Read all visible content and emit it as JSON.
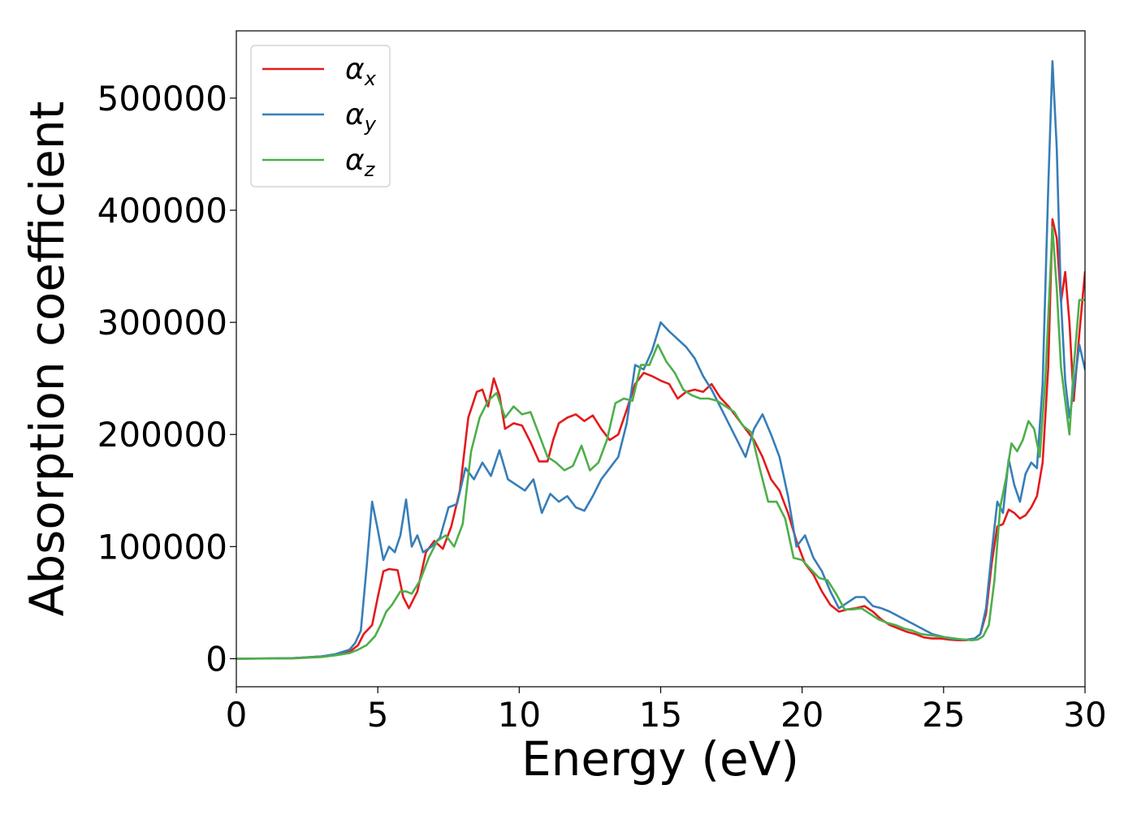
{
  "chart_data": {
    "type": "line",
    "title": "",
    "xlabel": "Energy (eV)",
    "ylabel": "Absorption coefficient",
    "xlim": [
      0,
      30
    ],
    "ylim": [
      -25000,
      560000
    ],
    "xticks": [
      0,
      5,
      10,
      15,
      20,
      25,
      30
    ],
    "yticks": [
      0,
      100000,
      200000,
      300000,
      400000,
      500000
    ],
    "grid": false,
    "legend_position": "top-left",
    "series": [
      {
        "name": "αx",
        "symbol": "α",
        "subscript": "x",
        "color": "#e41a1c",
        "x": [
          0,
          2,
          3,
          3.5,
          4,
          4.3,
          4.5,
          4.8,
          5,
          5.2,
          5.4,
          5.7,
          5.9,
          6.1,
          6.4,
          6.7,
          7.0,
          7.3,
          7.6,
          7.9,
          8.2,
          8.5,
          8.7,
          8.9,
          9.1,
          9.3,
          9.5,
          9.8,
          10.1,
          10.4,
          10.7,
          11.0,
          11.2,
          11.4,
          11.7,
          12.0,
          12.3,
          12.6,
          12.9,
          13.2,
          13.5,
          13.8,
          14.1,
          14.4,
          14.7,
          15.0,
          15.3,
          15.6,
          15.9,
          16.2,
          16.5,
          16.8,
          17.1,
          17.4,
          17.7,
          18.0,
          18.3,
          18.6,
          18.9,
          19.2,
          19.5,
          19.8,
          20.1,
          20.4,
          20.7,
          21.0,
          21.3,
          21.6,
          21.9,
          22.2,
          22.5,
          22.8,
          23.1,
          23.4,
          23.7,
          24.0,
          24.3,
          24.6,
          24.9,
          25.2,
          25.5,
          25.8,
          26.1,
          26.3,
          26.5,
          26.7,
          26.9,
          27.1,
          27.3,
          27.5,
          27.7,
          27.9,
          28.1,
          28.3,
          28.5,
          28.7,
          28.85,
          29.0,
          29.15,
          29.3,
          29.45,
          29.6,
          29.8,
          30.0
        ],
        "values": [
          0,
          500,
          2000,
          3500,
          6000,
          12000,
          22000,
          30000,
          55000,
          78000,
          80000,
          79000,
          55000,
          45000,
          60000,
          95000,
          105000,
          98000,
          118000,
          150000,
          215000,
          238000,
          240000,
          225000,
          250000,
          235000,
          205000,
          210000,
          208000,
          193000,
          176000,
          176000,
          195000,
          210000,
          215000,
          218000,
          212000,
          217000,
          205000,
          195000,
          200000,
          222000,
          245000,
          255000,
          252000,
          248000,
          245000,
          232000,
          238000,
          240000,
          238000,
          245000,
          233000,
          225000,
          215000,
          205000,
          195000,
          180000,
          160000,
          150000,
          130000,
          105000,
          85000,
          75000,
          60000,
          48000,
          42000,
          44000,
          45000,
          47000,
          42000,
          35000,
          30000,
          27000,
          24000,
          22000,
          19000,
          18000,
          18000,
          17000,
          16500,
          16500,
          18000,
          22000,
          40000,
          85000,
          118000,
          120000,
          133000,
          130000,
          125000,
          128000,
          135000,
          145000,
          175000,
          260000,
          392000,
          375000,
          318000,
          345000,
          300000,
          230000,
          290000,
          345000
        ]
      },
      {
        "name": "αy",
        "symbol": "α",
        "subscript": "y",
        "color": "#377eb8",
        "x": [
          0,
          2,
          3,
          3.5,
          4,
          4.2,
          4.4,
          4.6,
          4.8,
          5.0,
          5.2,
          5.4,
          5.6,
          5.8,
          6.0,
          6.2,
          6.4,
          6.6,
          6.9,
          7.2,
          7.5,
          7.8,
          8.1,
          8.4,
          8.7,
          9.0,
          9.3,
          9.6,
          9.9,
          10.2,
          10.5,
          10.8,
          11.1,
          11.4,
          11.7,
          12.0,
          12.3,
          12.6,
          12.9,
          13.2,
          13.5,
          13.8,
          14.1,
          14.4,
          14.7,
          15.0,
          15.3,
          15.6,
          15.9,
          16.2,
          16.5,
          16.8,
          17.1,
          17.4,
          17.7,
          18.0,
          18.3,
          18.6,
          18.9,
          19.2,
          19.5,
          19.8,
          20.1,
          20.4,
          20.7,
          21.0,
          21.3,
          21.6,
          21.9,
          22.2,
          22.5,
          22.8,
          23.1,
          23.4,
          23.7,
          24.0,
          24.3,
          24.6,
          24.9,
          25.2,
          25.5,
          25.8,
          26.1,
          26.3,
          26.5,
          26.7,
          26.9,
          27.1,
          27.3,
          27.5,
          27.7,
          27.9,
          28.1,
          28.3,
          28.5,
          28.7,
          28.85,
          29.0,
          29.15,
          29.3,
          29.45,
          29.6,
          29.8,
          30.0
        ],
        "values": [
          0,
          500,
          2000,
          4000,
          8000,
          14000,
          25000,
          80000,
          140000,
          115000,
          88000,
          100000,
          95000,
          110000,
          142000,
          100000,
          110000,
          95000,
          100000,
          108000,
          135000,
          138000,
          170000,
          160000,
          175000,
          163000,
          186000,
          160000,
          155000,
          150000,
          160000,
          130000,
          147000,
          140000,
          145000,
          135000,
          132000,
          145000,
          160000,
          170000,
          180000,
          210000,
          262000,
          258000,
          275000,
          300000,
          292000,
          285000,
          278000,
          268000,
          252000,
          240000,
          225000,
          210000,
          195000,
          180000,
          205000,
          218000,
          200000,
          180000,
          145000,
          100000,
          110000,
          90000,
          78000,
          60000,
          45000,
          50000,
          55000,
          55000,
          47000,
          45000,
          42000,
          38000,
          34000,
          30000,
          26000,
          22000,
          20000,
          18000,
          17500,
          17000,
          18000,
          22000,
          45000,
          95000,
          140000,
          130000,
          178000,
          155000,
          140000,
          165000,
          175000,
          170000,
          245000,
          420000,
          533000,
          455000,
          320000,
          248000,
          215000,
          240000,
          280000,
          258000
        ]
      },
      {
        "name": "αz",
        "symbol": "α",
        "subscript": "z",
        "color": "#4daf4a",
        "x": [
          0,
          2,
          3,
          3.5,
          4,
          4.3,
          4.6,
          4.9,
          5.1,
          5.3,
          5.5,
          5.8,
          6.0,
          6.2,
          6.5,
          6.8,
          7.1,
          7.4,
          7.7,
          8.0,
          8.3,
          8.6,
          8.9,
          9.2,
          9.5,
          9.8,
          10.1,
          10.4,
          10.7,
          11.0,
          11.3,
          11.6,
          11.9,
          12.2,
          12.5,
          12.8,
          13.1,
          13.4,
          13.7,
          14.0,
          14.3,
          14.6,
          14.9,
          15.2,
          15.5,
          15.8,
          16.1,
          16.4,
          16.7,
          17.0,
          17.3,
          17.6,
          17.9,
          18.2,
          18.5,
          18.8,
          19.1,
          19.4,
          19.7,
          20.0,
          20.3,
          20.6,
          20.9,
          21.2,
          21.5,
          21.8,
          22.1,
          22.4,
          22.7,
          23.0,
          23.3,
          23.6,
          23.9,
          24.2,
          24.5,
          24.8,
          25.1,
          25.4,
          25.7,
          26.0,
          26.2,
          26.4,
          26.6,
          26.8,
          27.0,
          27.2,
          27.4,
          27.6,
          27.8,
          28.0,
          28.2,
          28.4,
          28.6,
          28.85,
          29.0,
          29.15,
          29.3,
          29.45,
          29.6,
          29.8,
          30.0
        ],
        "values": [
          0,
          300,
          1500,
          3000,
          5000,
          8000,
          12000,
          20000,
          30000,
          42000,
          48000,
          60000,
          60000,
          58000,
          70000,
          90000,
          105000,
          110000,
          100000,
          120000,
          185000,
          215000,
          230000,
          237000,
          215000,
          225000,
          218000,
          220000,
          200000,
          180000,
          175000,
          168000,
          172000,
          190000,
          168000,
          175000,
          195000,
          228000,
          232000,
          230000,
          262000,
          262000,
          280000,
          265000,
          255000,
          240000,
          235000,
          232000,
          232000,
          230000,
          225000,
          220000,
          208000,
          202000,
          170000,
          140000,
          140000,
          125000,
          90000,
          88000,
          80000,
          72000,
          70000,
          58000,
          44000,
          44000,
          45000,
          40000,
          35000,
          32000,
          30000,
          27000,
          25000,
          22000,
          21000,
          20000,
          19000,
          18000,
          17000,
          16500,
          17000,
          20000,
          30000,
          70000,
          135000,
          160000,
          192000,
          185000,
          195000,
          212000,
          205000,
          180000,
          250000,
          385000,
          330000,
          260000,
          230000,
          200000,
          260000,
          320000,
          320000
        ]
      }
    ]
  }
}
